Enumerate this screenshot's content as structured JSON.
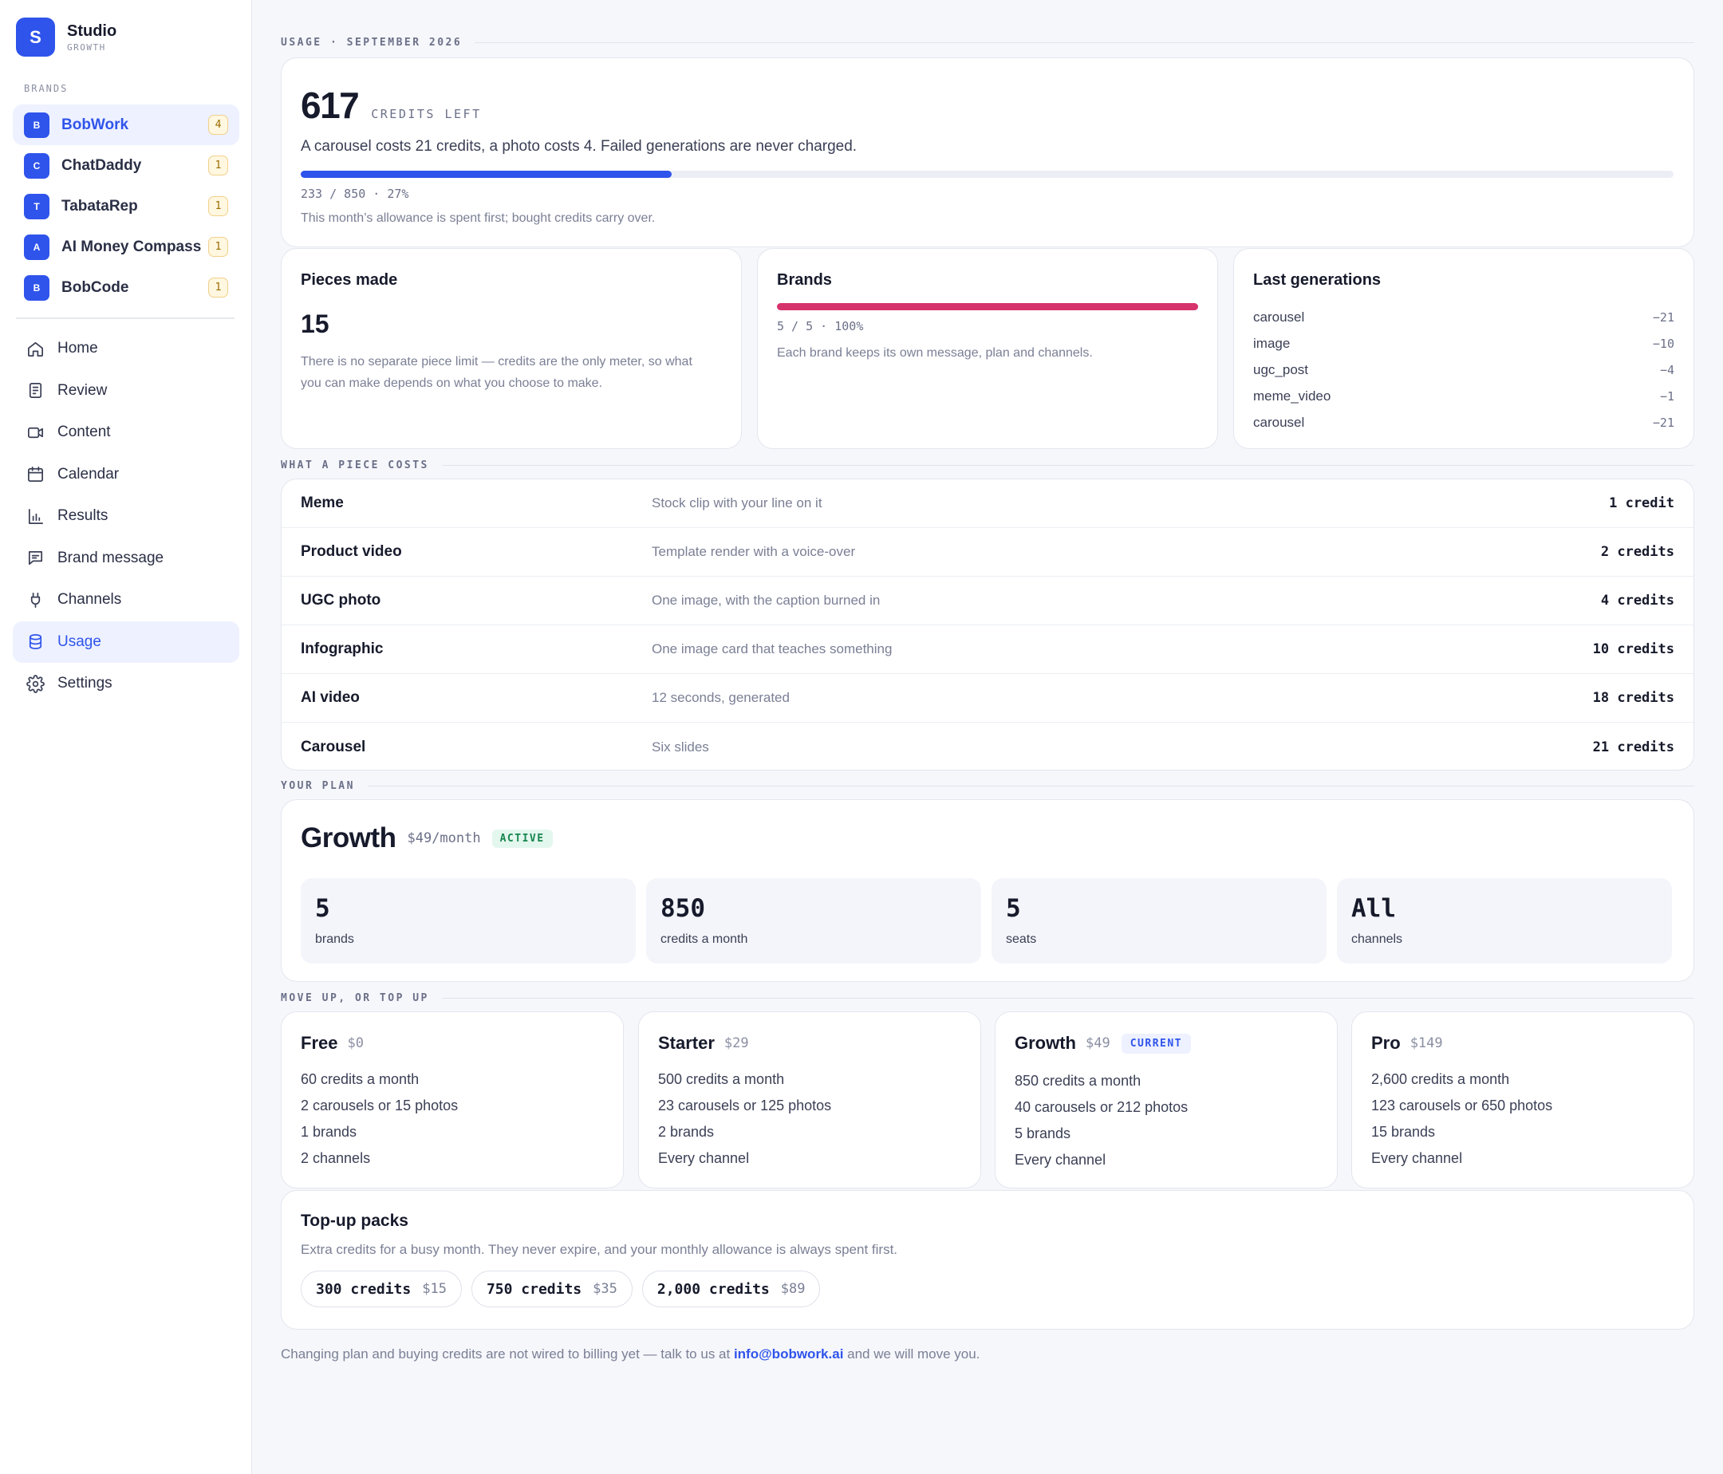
{
  "workspace": {
    "logo_letter": "S",
    "name": "Studio",
    "plan": "GROWTH"
  },
  "sidebar": {
    "brands_label": "BRANDS",
    "brands": [
      {
        "initial": "B",
        "name": "BobWork",
        "count": "4",
        "active": true
      },
      {
        "initial": "C",
        "name": "ChatDaddy",
        "count": "1"
      },
      {
        "initial": "T",
        "name": "TabataRep",
        "count": "1"
      },
      {
        "initial": "A",
        "name": "AI Money Compass",
        "count": "1"
      },
      {
        "initial": "B",
        "name": "BobCode",
        "count": "1"
      }
    ],
    "nav": [
      {
        "label": "Home",
        "icon": "home-icon"
      },
      {
        "label": "Review",
        "icon": "document-icon"
      },
      {
        "label": "Content",
        "icon": "video-icon"
      },
      {
        "label": "Calendar",
        "icon": "calendar-icon"
      },
      {
        "label": "Results",
        "icon": "bar-chart-icon"
      },
      {
        "label": "Brand message",
        "icon": "message-icon"
      },
      {
        "label": "Channels",
        "icon": "plug-icon"
      },
      {
        "label": "Usage",
        "icon": "database-icon",
        "active": true
      },
      {
        "label": "Settings",
        "icon": "gear-icon"
      }
    ]
  },
  "usage": {
    "section_label": "USAGE · SEPTEMBER 2026",
    "credits_left": "617",
    "credits_unit": "CREDITS LEFT",
    "description": "A carousel costs 21 credits, a photo costs 4. Failed generations are never charged.",
    "used_fraction": 0.27,
    "ratio_text": "233 / 850 · 27%",
    "note": "This month’s allowance is spent first; bought credits carry over."
  },
  "stats": {
    "pieces": {
      "title": "Pieces made",
      "value": "15",
      "description": "There is no separate piece limit — credits are the only meter, so what you can make depends on what you choose to make."
    },
    "brands": {
      "title": "Brands",
      "fill_fraction": 1.0,
      "ratio_text": "5 / 5 · 100%",
      "description": "Each brand keeps its own message, plan and channels."
    },
    "last_generations": {
      "title": "Last generations",
      "rows": [
        {
          "name": "carousel",
          "value": "−21"
        },
        {
          "name": "image",
          "value": "−10"
        },
        {
          "name": "ugc_post",
          "value": "−4"
        },
        {
          "name": "meme_video",
          "value": "−1"
        },
        {
          "name": "carousel",
          "value": "−21"
        }
      ]
    }
  },
  "costs": {
    "section_label": "WHAT A PIECE COSTS",
    "rows": [
      {
        "name": "Meme",
        "description": "Stock clip with your line on it",
        "cost": "1 credit"
      },
      {
        "name": "Product video",
        "description": "Template render with a voice-over",
        "cost": "2 credits"
      },
      {
        "name": "UGC photo",
        "description": "One image, with the caption burned in",
        "cost": "4 credits"
      },
      {
        "name": "Infographic",
        "description": "One image card that teaches something",
        "cost": "10 credits"
      },
      {
        "name": "AI video",
        "description": "12 seconds, generated",
        "cost": "18 credits"
      },
      {
        "name": "Carousel",
        "description": "Six slides",
        "cost": "21 credits"
      }
    ]
  },
  "plan": {
    "section_label": "YOUR PLAN",
    "name": "Growth",
    "price": "$49/month",
    "badge": "ACTIVE",
    "tiles": [
      {
        "value": "5",
        "label": "brands"
      },
      {
        "value": "850",
        "label": "credits a month"
      },
      {
        "value": "5",
        "label": "seats"
      },
      {
        "value": "All",
        "label": "channels"
      }
    ]
  },
  "tiers": {
    "section_label": "MOVE UP, OR TOP UP",
    "items": [
      {
        "name": "Free",
        "price": "$0",
        "lines": [
          "60 credits a month",
          "2 carousels or 15 photos",
          "1 brands",
          "2 channels"
        ]
      },
      {
        "name": "Starter",
        "price": "$29",
        "lines": [
          "500 credits a month",
          "23 carousels or 125 photos",
          "2 brands",
          "Every channel"
        ]
      },
      {
        "name": "Growth",
        "price": "$49",
        "badge": "CURRENT",
        "lines": [
          "850 credits a month",
          "40 carousels or 212 photos",
          "5 brands",
          "Every channel"
        ]
      },
      {
        "name": "Pro",
        "price": "$149",
        "lines": [
          "2,600 credits a month",
          "123 carousels or 650 photos",
          "15 brands",
          "Every channel"
        ]
      }
    ]
  },
  "topup": {
    "title": "Top-up packs",
    "description": "Extra credits for a busy month. They never expire, and your monthly allowance is always spent first.",
    "packs": [
      {
        "credits": "300 credits",
        "price": "$15"
      },
      {
        "credits": "750 credits",
        "price": "$35"
      },
      {
        "credits": "2,000 credits",
        "price": "$89"
      }
    ]
  },
  "footer": {
    "text_before": "Changing plan and buying credits are not wired to billing yet — talk to us at ",
    "email": "info@bobwork.ai",
    "text_after": " and we will move you."
  },
  "colors": {
    "accent": "#2f54eb",
    "brand_bar": "#d6336c",
    "active_badge": "#16864f"
  }
}
